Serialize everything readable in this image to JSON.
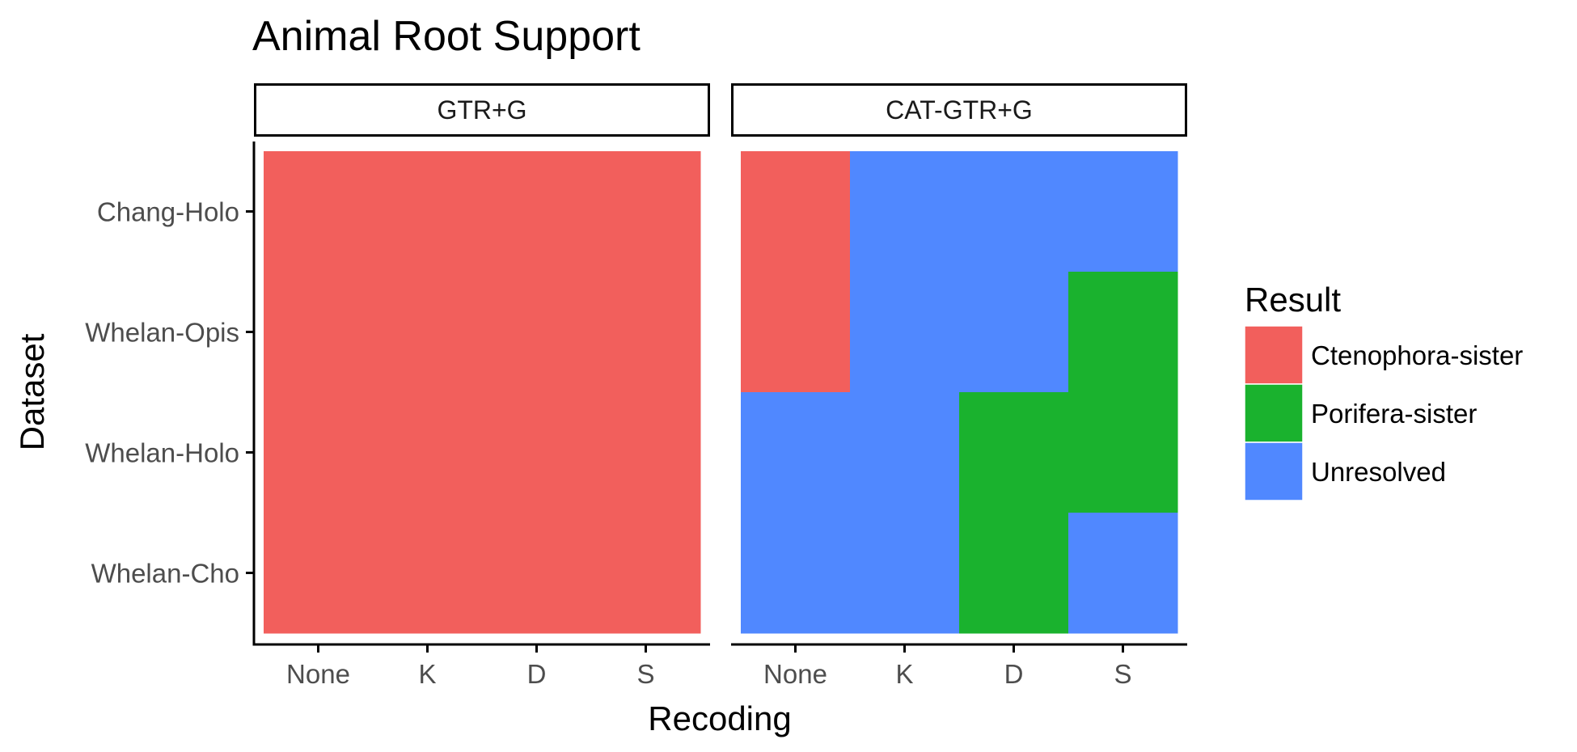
{
  "chart_data": {
    "type": "heatmap",
    "title": "Animal Root Support",
    "xlabel": "Recoding",
    "ylabel": "Dataset",
    "x_categories": [
      "None",
      "K",
      "D",
      "S"
    ],
    "y_categories": [
      "Chang-Holo",
      "Whelan-Opis",
      "Whelan-Holo",
      "Whelan-Cho"
    ],
    "legend": {
      "title": "Result",
      "position": "right",
      "entries": [
        {
          "label": "Ctenophora-sister",
          "color": "#F25F5C"
        },
        {
          "label": "Porifera-sister",
          "color": "#1AB22E"
        },
        {
          "label": "Unresolved",
          "color": "#5088FF"
        }
      ]
    },
    "panels": [
      {
        "name": "GTR+G",
        "values": [
          [
            "Ctenophora-sister",
            "Ctenophora-sister",
            "Ctenophora-sister",
            "Ctenophora-sister"
          ],
          [
            "Ctenophora-sister",
            "Ctenophora-sister",
            "Ctenophora-sister",
            "Ctenophora-sister"
          ],
          [
            "Ctenophora-sister",
            "Ctenophora-sister",
            "Ctenophora-sister",
            "Ctenophora-sister"
          ],
          [
            "Ctenophora-sister",
            "Ctenophora-sister",
            "Ctenophora-sister",
            "Ctenophora-sister"
          ]
        ]
      },
      {
        "name": "CAT-GTR+G",
        "values": [
          [
            "Ctenophora-sister",
            "Unresolved",
            "Unresolved",
            "Unresolved"
          ],
          [
            "Ctenophora-sister",
            "Unresolved",
            "Unresolved",
            "Porifera-sister"
          ],
          [
            "Unresolved",
            "Unresolved",
            "Porifera-sister",
            "Porifera-sister"
          ],
          [
            "Unresolved",
            "Unresolved",
            "Porifera-sister",
            "Unresolved"
          ]
        ]
      }
    ],
    "grid": false
  }
}
